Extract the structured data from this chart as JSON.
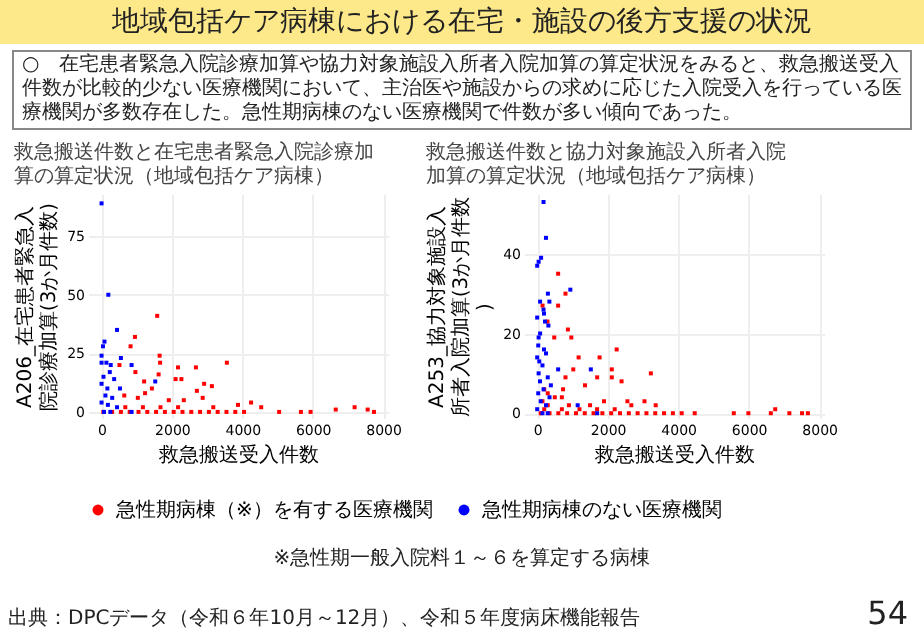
{
  "chart_data": [
    {
      "type": "scatter",
      "title": "救急搬送件数と在宅患者緊急入院診療加算の算定状況（地域包括ケア病棟）",
      "xlabel": "救急搬送受入件数",
      "ylabel": "A206_在宅患者緊急入院診療加算(3か月件数)",
      "xlim": [
        -385,
        8140
      ],
      "ylim": [
        -2.6,
        93
      ],
      "xticks": [
        0,
        2000,
        4000,
        6000,
        8000
      ],
      "yticks": [
        0,
        25,
        50,
        75
      ],
      "grid": true,
      "legend": "bottom",
      "marker": "square",
      "series": [
        {
          "name": "急性期病棟（※）を有する医療機関",
          "color": "#ff0000",
          "x": [
            1581,
            949,
            825,
            1650,
            1664,
            3561,
            509,
            1622,
            962,
            2172,
            2681,
            2104,
            2269,
            1210,
            3135,
            2915,
            2709,
            1430,
            1237,
            646,
            1031,
            1911,
            2337,
            2874,
            4249,
            3877,
            4537,
            5046,
            5665,
            5940,
            6655,
            7191,
            7562,
            7741,
            50,
            300,
            550,
            800,
            1050,
            1300,
            1550,
            1800,
            2050,
            2300,
            2550,
            2800,
            3050,
            3300,
            3550,
            3800,
            4050,
            675,
            1175,
            1675,
            2175,
            3175
          ],
          "values": [
            41,
            32,
            28,
            24,
            21,
            21,
            20,
            16,
            17,
            19,
            19,
            14,
            14,
            13,
            11,
            12,
            9,
            10,
            8,
            7,
            6,
            5,
            5,
            6,
            4,
            3,
            2,
            0,
            0,
            0,
            1,
            2,
            1,
            0,
            0,
            0,
            0,
            0,
            0,
            0,
            0,
            0,
            0,
            0,
            0,
            0,
            0,
            0,
            0,
            0,
            0,
            2,
            2,
            2,
            2,
            2
          ]
        },
        {
          "name": "急性期病棟のない医療機関",
          "color": "#0000ff",
          "x": [
            0,
            193,
            440,
            83,
            41,
            0,
            0,
            138,
            261,
            853,
            550,
            234,
            55,
            358,
            1526,
            0,
            165,
            523,
            110,
            303,
            0,
            440,
            69,
            853,
            250,
            180
          ],
          "values": [
            89,
            50,
            35,
            30,
            28,
            24,
            21,
            21,
            20,
            20,
            23,
            17,
            15,
            14,
            13,
            12,
            10,
            10,
            7,
            6,
            4,
            2,
            0,
            0,
            0,
            3
          ]
        }
      ]
    },
    {
      "type": "scatter",
      "title": "救急搬送件数と協力対象施設入所者入院加算の算定状況（地域包括ケア病棟）",
      "xlabel": "救急搬送受入件数",
      "ylabel": "A253_協力対象施設入所者入院加算(3か月件数)",
      "xlim": [
        -374,
        8138
      ],
      "ylim": [
        -1.2,
        55
      ],
      "xticks": [
        0,
        2000,
        4000,
        6000,
        8000
      ],
      "yticks": [
        0,
        20,
        40
      ],
      "grid": true,
      "legend": "bottom",
      "marker": "square",
      "series": [
        {
          "name": "急性期病棟（※）を有する医療機関",
          "color": "#ff0000",
          "x": [
            595,
            803,
            595,
            152,
            291,
            484,
            969,
            872,
            1176,
            1771,
            2256,
            2117,
            1024,
            3225,
            803,
            1702,
            2117,
            2394,
            1356,
            734,
            2560,
            3363,
            3045,
            1896,
            2671,
            4470,
            5578,
            5993,
            6629,
            7155,
            7515,
            7681,
            6754,
            100,
            350,
            600,
            850,
            1100,
            1350,
            1600,
            1850,
            2100,
            2350,
            2600,
            2850,
            3100,
            3350,
            3600,
            3850,
            4100,
            200,
            700,
            1200,
            1700,
            2200,
            300,
            900,
            1500,
            150,
            500,
            300,
            700,
            200
          ],
          "values": [
            35,
            30,
            27,
            27,
            23,
            19,
            19,
            21,
            14,
            14,
            16,
            11,
            11,
            10,
            9,
            9,
            9,
            8,
            7,
            6,
            3,
            2,
            3,
            3,
            2,
            0,
            0,
            0,
            0,
            0,
            0,
            0,
            1,
            0,
            0,
            0,
            0,
            0,
            0,
            0,
            0,
            0,
            0,
            0,
            0,
            0,
            0,
            0,
            0,
            0,
            1,
            1,
            1,
            1,
            1,
            2,
            2,
            2,
            3,
            4,
            5,
            4,
            6
          ]
        },
        {
          "name": "急性期病棟のない医療機関",
          "color": "#0000ff",
          "x": [
            180,
            249,
            111,
            41,
            0,
            941,
            304,
            346,
            83,
            180,
            194,
            0,
            221,
            318,
            83,
            41,
            194,
            0,
            595,
            1522,
            41,
            388,
            1149,
            0,
            1702,
            150,
            300,
            250,
            100,
            350,
            30,
            180,
            80,
            300,
            150,
            60,
            250,
            30
          ],
          "values": [
            53,
            44,
            39,
            38,
            37,
            31,
            30,
            28,
            28,
            26,
            25,
            24,
            23,
            22,
            20,
            19,
            16,
            14,
            11,
            11,
            10,
            7,
            2,
            1,
            0,
            0,
            0,
            2,
            3,
            4,
            5,
            6,
            8,
            9,
            12,
            13,
            15,
            17
          ]
        }
      ]
    },
    {
      "type": "other",
      "title": "地域包括ケア病棟における在宅・施設の後方支援の状況",
      "annotations": [
        "○　在宅患者緊急入院診療加算や協力対象施設入所者入院加算の算定状況をみると、救急搬送受入件数が比較的少ない医療機関において、主治医や施設からの求めに応じた入院受入を行っている医療機関が多数存在した。急性期病棟のない医療機関で件数が多い傾向であった。",
        "※急性期一般入院料１～６を算定する病棟",
        "出典：DPCデータ（令和６年10月～12月）、令和５年度病床機能報告",
        "54"
      ]
    }
  ]
}
